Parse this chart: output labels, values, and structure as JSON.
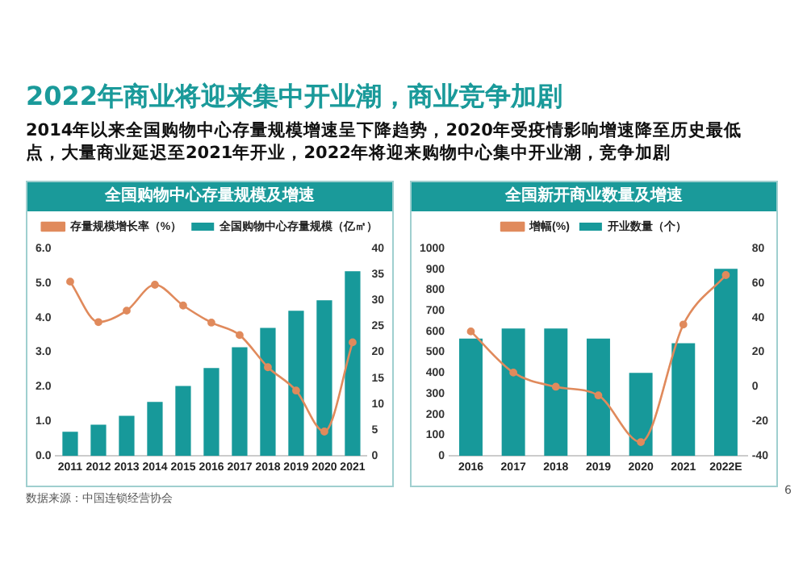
{
  "chart_data": [
    {
      "type": "other",
      "title": "2022年商业将迎来集中开业潮，商业竞争加剧",
      "subtitle": "2014年以来全国购物中心存量规模增速呈下降趋势，2020年受疫情影响增速降至历史最低点，大量商业延迟至2021年开业，2022年将迎来购物中心集中开业潮，竞争加剧"
    },
    {
      "type": "bar",
      "title": "全国购物中心存量规模及增速",
      "categories": [
        "2011",
        "2012",
        "2013",
        "2014",
        "2015",
        "2016",
        "2017",
        "2018",
        "2019",
        "2020",
        "2021"
      ],
      "series": [
        {
          "name": "全国购物中心存量规模（亿㎡）",
          "color": "#17999a",
          "values": [
            0.7,
            0.9,
            1.16,
            1.56,
            2.02,
            2.54,
            3.14,
            3.7,
            4.2,
            4.5,
            5.34
          ]
        },
        {
          "type": "line",
          "axis": "y2",
          "name": "存量规模增长率（%）",
          "color": "#e08a5c",
          "values": [
            33.6,
            25.8,
            28,
            33,
            29,
            25.7,
            23.3,
            17.1,
            12.6,
            4.7,
            21.9
          ]
        }
      ],
      "ylim": [
        0,
        6
      ],
      "yticks": [
        {
          "value": 0,
          "label": "0.0"
        },
        {
          "value": 1,
          "label": "1.0"
        },
        {
          "value": 2,
          "label": "2.0"
        },
        {
          "value": 3,
          "label": "3.0"
        },
        {
          "value": 4,
          "label": "4.0"
        },
        {
          "value": 5,
          "label": "5.0"
        },
        {
          "value": 6,
          "label": "6.0"
        }
      ],
      "y2lim": [
        0,
        40
      ],
      "y2ticks": [
        0,
        5,
        10,
        15,
        20,
        25,
        30,
        35,
        40
      ],
      "grid": false,
      "legend": "top",
      "marker": "circle",
      "annotations": [
        "数据来源：中国连锁经营协会"
      ]
    },
    {
      "type": "bar",
      "title": "全国新开商业数量及增速",
      "categories": [
        "2016",
        "2017",
        "2018",
        "2019",
        "2020",
        "2021",
        "2022E"
      ],
      "series": [
        {
          "name": "开业数量（个）",
          "color": "#17999a",
          "values": [
            566,
            614,
            614,
            566,
            400,
            543,
            902
          ]
        },
        {
          "type": "line",
          "axis": "y2",
          "name": "增幅(%)",
          "color": "#e08a5c",
          "values": [
            32,
            8.2,
            0,
            -5,
            -32,
            36,
            64.6
          ]
        }
      ],
      "ylim": [
        0,
        1000
      ],
      "yticks": [
        0,
        100,
        200,
        300,
        400,
        500,
        600,
        700,
        800,
        900,
        1000
      ],
      "y2lim": [
        -40,
        80
      ],
      "y2ticks": [
        -40,
        -20,
        0,
        20,
        40,
        60,
        80
      ],
      "grid": false,
      "legend": "top",
      "marker": "circle",
      "annotations": [
        "6"
      ]
    }
  ]
}
